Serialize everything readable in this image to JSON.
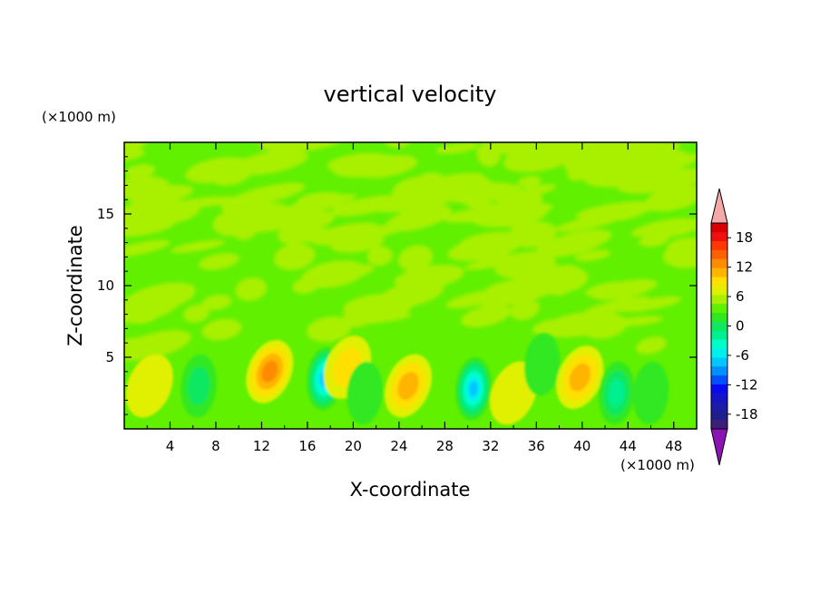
{
  "chart_data": {
    "type": "heatmap",
    "subtype": "filled-contour",
    "title": "vertical velocity",
    "xlabel": "X-coordinate",
    "ylabel": "Z-coordinate",
    "x_unit_label": "(×1000 m)",
    "y_unit_label": "(×1000 m)",
    "xlim": [
      0,
      50
    ],
    "ylim": [
      0,
      20
    ],
    "xticks": [
      4,
      8,
      12,
      16,
      20,
      24,
      28,
      32,
      36,
      40,
      44,
      48
    ],
    "yticks": [
      5,
      10,
      15
    ],
    "colorbar": {
      "levels": [
        -21,
        -19.5,
        -18,
        -16.5,
        -15,
        -13.5,
        -12,
        -10.5,
        -9,
        -7.5,
        -6,
        -4.5,
        -3,
        -1.5,
        0,
        1.5,
        3,
        4.5,
        6,
        7.5,
        9,
        10.5,
        12,
        13.5,
        15,
        16.5,
        18,
        19.5,
        21
      ],
      "tick_labels": [
        "-18",
        "-12",
        "-6",
        "0",
        "6",
        "12",
        "18"
      ],
      "tick_values": [
        -18,
        -12,
        -6,
        0,
        6,
        12,
        18
      ],
      "colors": [
        "#3c1f78",
        "#1f1f8c",
        "#1c1ca8",
        "#1414c8",
        "#0a0af0",
        "#0050ff",
        "#0090ff",
        "#00c8ff",
        "#00f0f0",
        "#00ffc8",
        "#00f090",
        "#10e860",
        "#30e820",
        "#60f000",
        "#a8f000",
        "#e0f000",
        "#ffe000",
        "#ffb400",
        "#ff8c00",
        "#ff6000",
        "#ff3800",
        "#f01010",
        "#d80000"
      ],
      "under_color": "#8c14b4",
      "over_color": "#f4a8a8",
      "extend": "both"
    },
    "features": [
      {
        "x": 2.2,
        "z": 3.0,
        "w": 2.0
      },
      {
        "x": 6.5,
        "z": 3.0,
        "w": -4.0
      },
      {
        "x": 12.7,
        "z": 4.0,
        "w": 7.0
      },
      {
        "x": 17.5,
        "z": 3.5,
        "w": -10.0
      },
      {
        "x": 19.5,
        "z": 4.3,
        "w": 4.0
      },
      {
        "x": 21.0,
        "z": 2.5,
        "w": -2.0
      },
      {
        "x": 24.8,
        "z": 3.0,
        "w": 5.5
      },
      {
        "x": 30.5,
        "z": 2.8,
        "w": -9.0
      },
      {
        "x": 34.0,
        "z": 2.5,
        "w": 1.5
      },
      {
        "x": 36.5,
        "z": 4.5,
        "w": -2.5
      },
      {
        "x": 39.8,
        "z": 3.6,
        "w": 5.0
      },
      {
        "x": 43.0,
        "z": 2.5,
        "w": -5.0
      },
      {
        "x": 46.0,
        "z": 2.5,
        "w": -2.5
      }
    ],
    "background_upper_value": 1.0,
    "background_field_value": -0.5
  }
}
